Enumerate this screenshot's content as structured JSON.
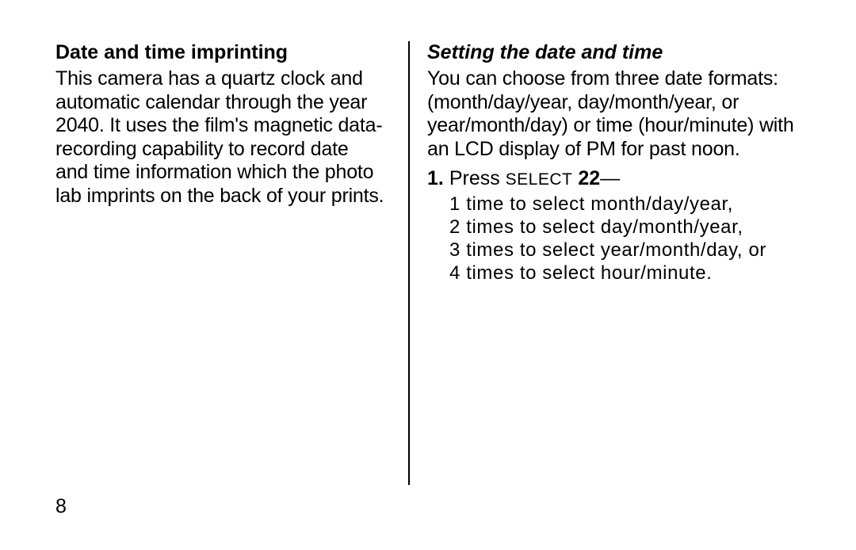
{
  "page_number": "8",
  "left": {
    "heading": "Date and time imprinting",
    "body": "This camera has a quartz clock and automatic calendar through the year 2040. It uses the film's magnetic data-recording capability to record date and time information which the photo lab imprints on the back of your prints."
  },
  "right": {
    "heading": "Setting the date and time",
    "body": "You can choose from three date formats: (month/day/year, day/month/year, or year/month/day) or time (hour/minute) with an LCD display of PM for past noon.",
    "step_number": "1.",
    "step_press": "Press ",
    "step_select": "SELECT",
    "step_ref": " 22",
    "step_dash": "—",
    "sub1": "1 time to select month/day/year,",
    "sub2": "2 times to select day/month/year,",
    "sub3": "3 times to select year/month/day, or",
    "sub4": "4 times to select hour/minute."
  }
}
